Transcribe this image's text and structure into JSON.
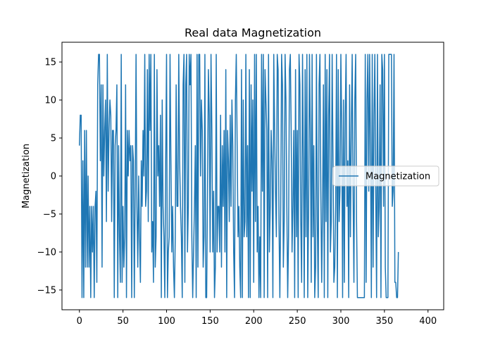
{
  "chart_data": {
    "type": "line",
    "title": "Real data Magnetization",
    "xlabel": "",
    "ylabel": "Magnetization",
    "xlim": [
      -20,
      418
    ],
    "ylim": [
      -17.6,
      17.6
    ],
    "x_ticks": [
      0,
      50,
      100,
      150,
      200,
      250,
      300,
      350,
      400
    ],
    "y_ticks": [
      -15,
      -10,
      -5,
      0,
      5,
      10,
      15
    ],
    "grid": false,
    "legend_position": "center-right",
    "series": [
      {
        "name": "Magnetization",
        "color": "#1f77b4",
        "x_start": 0,
        "x_step": 1,
        "values": [
          4,
          8,
          8,
          -16,
          2,
          -16,
          6,
          -12,
          6,
          -12,
          0,
          -12,
          -4,
          -16,
          -4,
          -10,
          -4,
          -16,
          -4,
          -2,
          -14,
          12,
          16,
          16,
          2,
          12,
          -12,
          12,
          0,
          6,
          10,
          -6,
          16,
          -2,
          6,
          10,
          8,
          -6,
          6,
          6,
          -16,
          4,
          6,
          12,
          -16,
          4,
          -8,
          -14,
          16,
          -14,
          -4,
          -12,
          -8,
          12,
          -16,
          6,
          0,
          6,
          2,
          4,
          -16,
          4,
          2,
          -16,
          -2,
          16,
          -4,
          -12,
          0,
          -8,
          -14,
          2,
          -4,
          6,
          0,
          16,
          -4,
          -2,
          14,
          -6,
          16,
          6,
          16,
          -10,
          -6,
          -14,
          16,
          -12,
          -8,
          14,
          0,
          4,
          -4,
          8,
          -16,
          10,
          -4,
          -8,
          -16,
          2,
          16,
          -16,
          -10,
          -8,
          16,
          2,
          -10,
          -4,
          -12,
          -16,
          -8,
          12,
          -4,
          -4,
          16,
          2,
          -4,
          -8,
          -16,
          12,
          16,
          -14,
          12,
          16,
          -10,
          -4,
          16,
          12,
          16,
          -8,
          -16,
          -10,
          -4,
          4,
          -16,
          16,
          -12,
          16,
          16,
          0,
          10,
          6,
          -12,
          -8,
          16,
          -16,
          -16,
          -2,
          14,
          8,
          -10,
          16,
          6,
          -10,
          -2,
          -16,
          -12,
          16,
          -10,
          -4,
          -4,
          -10,
          8,
          -12,
          4,
          -4,
          6,
          -10,
          14,
          -16,
          6,
          2,
          -6,
          8,
          -4,
          10,
          4,
          -10,
          -16,
          10,
          16,
          4,
          -8,
          -4,
          -12,
          -16,
          14,
          -16,
          10,
          -8,
          -6,
          16,
          -8,
          4,
          -16,
          14,
          -16,
          12,
          -2,
          10,
          -14,
          16,
          -6,
          16,
          -10,
          -4,
          -16,
          -8,
          -16,
          16,
          -2,
          16,
          -16,
          14,
          10,
          6,
          -16,
          16,
          -10,
          -4,
          6,
          2,
          -16,
          16,
          6,
          -2,
          -8,
          16,
          14,
          -6,
          -16,
          -4,
          16,
          12,
          -12,
          -6,
          16,
          10,
          -4,
          -16,
          -8,
          14,
          16,
          6,
          -10,
          -4,
          6,
          -16,
          14,
          -8,
          6,
          -16,
          16,
          12,
          -6,
          -14,
          16,
          2,
          -16,
          14,
          -8,
          16,
          -16,
          -4,
          16,
          6,
          -14,
          16,
          -8,
          4,
          -16,
          -12,
          16,
          -6,
          -16,
          12,
          16,
          -2,
          -14,
          -4,
          12,
          -16,
          16,
          -6,
          14,
          -16,
          8,
          16,
          -10,
          -6,
          16,
          2,
          -14,
          -12,
          -4,
          16,
          -16,
          14,
          -6,
          -2,
          16,
          6,
          -16,
          10,
          -14,
          8,
          16,
          -4,
          2,
          -16,
          12,
          -8,
          6,
          16,
          -2,
          -14,
          10,
          16,
          -6,
          -16,
          -16,
          -16,
          -16,
          -16,
          -16,
          -16,
          -16,
          -16,
          16,
          -14,
          10,
          16,
          -2,
          16,
          4,
          -16,
          16,
          -12,
          8,
          16,
          -2,
          -16,
          16,
          -8,
          -4,
          12,
          -16,
          16,
          14,
          -4,
          16,
          -12,
          -16,
          -16,
          -16,
          16,
          16,
          16,
          16,
          -4,
          -2,
          16,
          -14,
          -14,
          -16,
          -16,
          -10
        ]
      }
    ]
  }
}
